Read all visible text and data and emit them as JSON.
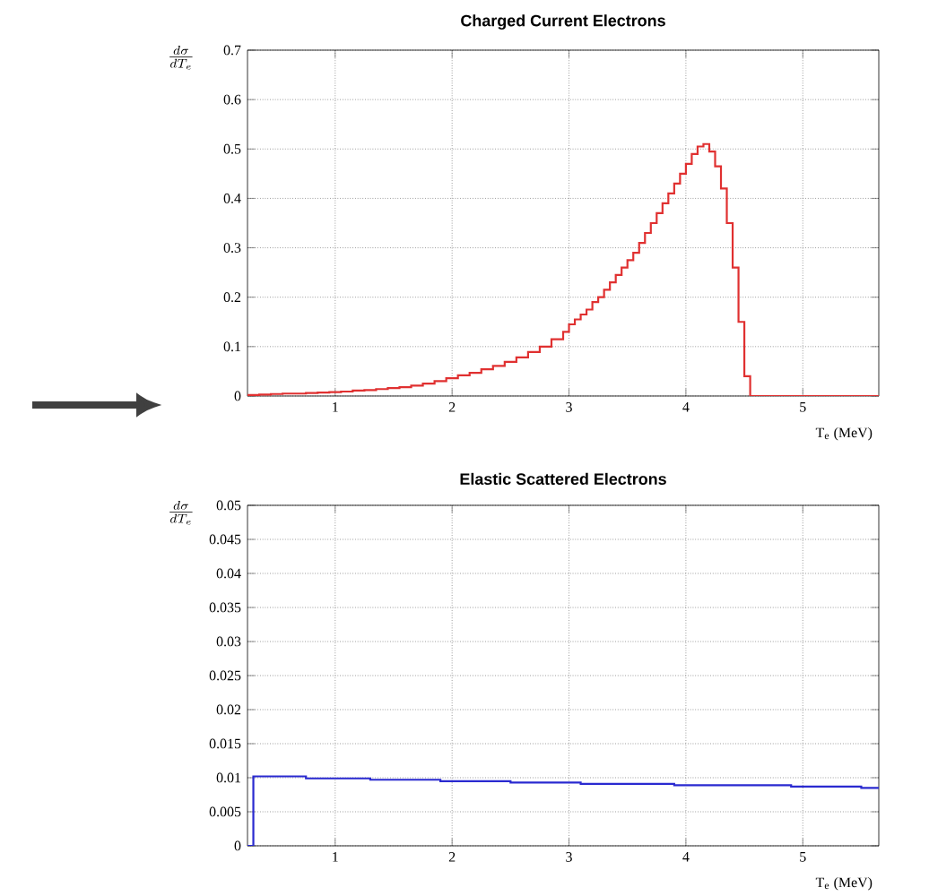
{
  "chart_data": [
    {
      "type": "histogram",
      "title": "Charged Current Electrons",
      "xlabel": "T$_{e}$ (MeV)",
      "ylabel": "\\frac{d\\sigma}{dT_{e}}",
      "color": "#e03030",
      "bins": [
        0.25,
        0.35,
        0.45,
        0.55,
        0.65,
        0.75,
        0.85,
        0.95,
        1.05,
        1.15,
        1.25,
        1.35,
        1.45,
        1.55,
        1.65,
        1.75,
        1.85,
        1.95,
        2.05,
        2.15,
        2.25,
        2.35,
        2.45,
        2.55,
        2.65,
        2.75,
        2.85,
        2.95,
        3.0,
        3.05,
        3.1,
        3.15,
        3.2,
        3.25,
        3.3,
        3.35,
        3.4,
        3.45,
        3.5,
        3.55,
        3.6,
        3.65,
        3.7,
        3.75,
        3.8,
        3.85,
        3.9,
        3.95,
        4.0,
        4.05,
        4.1,
        4.15,
        4.2,
        4.25,
        4.3,
        4.35,
        4.4,
        4.45,
        4.5,
        4.55,
        5.65
      ],
      "values": [
        0.002,
        0.003,
        0.004,
        0.005,
        0.005,
        0.006,
        0.007,
        0.008,
        0.009,
        0.011,
        0.012,
        0.014,
        0.016,
        0.018,
        0.021,
        0.025,
        0.03,
        0.036,
        0.042,
        0.047,
        0.054,
        0.061,
        0.069,
        0.078,
        0.089,
        0.1,
        0.115,
        0.13,
        0.145,
        0.155,
        0.165,
        0.175,
        0.19,
        0.2,
        0.215,
        0.23,
        0.245,
        0.26,
        0.275,
        0.29,
        0.31,
        0.33,
        0.35,
        0.37,
        0.39,
        0.41,
        0.43,
        0.45,
        0.47,
        0.49,
        0.505,
        0.51,
        0.495,
        0.465,
        0.42,
        0.35,
        0.26,
        0.15,
        0.04,
        0
      ],
      "xlim": [
        0.25,
        5.65
      ],
      "ylim": [
        0,
        0.7
      ],
      "xticks": [
        1,
        2,
        3,
        4,
        5
      ],
      "yticks": [
        0,
        0.1,
        0.2,
        0.3,
        0.4,
        0.5,
        0.6,
        0.7
      ],
      "grid": true
    },
    {
      "type": "histogram",
      "title": "Elastic Scattered Electrons",
      "xlabel": "T$_{e}$ (MeV)",
      "ylabel": "\\frac{d\\sigma}{dT_{e}}",
      "color": "#2a2ad0",
      "bins": [
        0.25,
        0.3,
        0.75,
        1.3,
        1.9,
        2.5,
        3.1,
        3.9,
        4.9,
        5.5,
        5.65
      ],
      "values": [
        0,
        0.0102,
        0.0099,
        0.0097,
        0.0095,
        0.0093,
        0.0091,
        0.0089,
        0.0087,
        0.0085
      ],
      "xlim": [
        0.25,
        5.65
      ],
      "ylim": [
        0,
        0.05
      ],
      "xticks": [
        1,
        2,
        3,
        4,
        5
      ],
      "yticks": [
        0,
        0.005,
        0.01,
        0.015,
        0.02,
        0.025,
        0.03,
        0.035,
        0.04,
        0.045,
        0.05
      ],
      "grid": true
    }
  ]
}
